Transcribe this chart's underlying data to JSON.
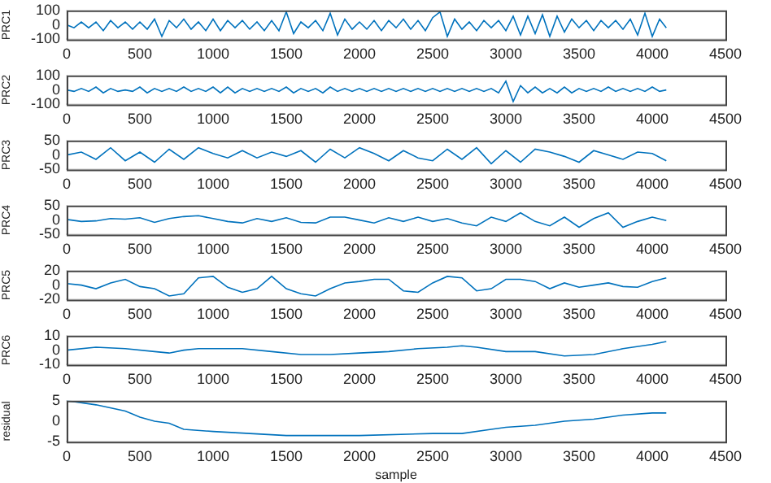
{
  "chart_data": [
    {
      "type": "line",
      "ylabel": "PRC1",
      "marker": "none",
      "xlim": [
        0,
        4500
      ],
      "xticks": [
        0,
        500,
        1000,
        1500,
        2000,
        2500,
        3000,
        3500,
        4000,
        4500
      ],
      "ylim": [
        -100,
        100
      ],
      "yticks": [
        -100,
        0,
        100
      ],
      "x": [
        0,
        50,
        100,
        150,
        200,
        250,
        300,
        350,
        400,
        450,
        500,
        550,
        600,
        650,
        700,
        750,
        800,
        850,
        900,
        950,
        1000,
        1050,
        1100,
        1150,
        1200,
        1250,
        1300,
        1350,
        1400,
        1450,
        1500,
        1550,
        1600,
        1650,
        1700,
        1750,
        1800,
        1850,
        1900,
        1950,
        2000,
        2050,
        2100,
        2150,
        2200,
        2250,
        2300,
        2350,
        2400,
        2450,
        2500,
        2550,
        2600,
        2650,
        2700,
        2750,
        2800,
        2850,
        2900,
        2950,
        3000,
        3050,
        3100,
        3150,
        3200,
        3250,
        3300,
        3350,
        3400,
        3450,
        3500,
        3550,
        3600,
        3650,
        3700,
        3750,
        3800,
        3850,
        3900,
        3950,
        4000,
        4050,
        4096
      ],
      "series": [
        {
          "color": "#0072bd",
          "values": [
            0,
            -20,
            20,
            -20,
            20,
            -40,
            30,
            -20,
            20,
            -30,
            20,
            -30,
            40,
            -80,
            30,
            -20,
            40,
            -30,
            20,
            -40,
            40,
            -40,
            30,
            -20,
            30,
            -30,
            20,
            -40,
            30,
            -40,
            90,
            -60,
            20,
            -20,
            30,
            -40,
            80,
            -70,
            40,
            -30,
            20,
            -30,
            30,
            -40,
            30,
            -20,
            40,
            -30,
            30,
            -40,
            50,
            90,
            -80,
            40,
            -30,
            20,
            -40,
            30,
            -20,
            30,
            -40,
            60,
            -70,
            60,
            -60,
            70,
            -80,
            60,
            -50,
            40,
            -20,
            30,
            -40,
            30,
            -20,
            30,
            -30,
            40,
            -70,
            80,
            -80,
            40,
            -20
          ]
        }
      ]
    },
    {
      "type": "line",
      "ylabel": "PRC2",
      "marker": "none",
      "xlim": [
        0,
        4500
      ],
      "xticks": [
        0,
        500,
        1000,
        1500,
        2000,
        2500,
        3000,
        3500,
        4000,
        4500
      ],
      "ylim": [
        -100,
        100
      ],
      "yticks": [
        -100,
        0,
        100
      ],
      "x": [
        0,
        50,
        100,
        150,
        200,
        250,
        300,
        350,
        400,
        450,
        500,
        550,
        600,
        650,
        700,
        750,
        800,
        850,
        900,
        950,
        1000,
        1050,
        1100,
        1150,
        1200,
        1250,
        1300,
        1350,
        1400,
        1450,
        1500,
        1550,
        1600,
        1650,
        1700,
        1750,
        1800,
        1850,
        1900,
        1950,
        2000,
        2050,
        2100,
        2150,
        2200,
        2250,
        2300,
        2350,
        2400,
        2450,
        2500,
        2550,
        2600,
        2650,
        2700,
        2750,
        2800,
        2850,
        2900,
        2950,
        3000,
        3050,
        3100,
        3150,
        3200,
        3250,
        3300,
        3350,
        3400,
        3450,
        3500,
        3550,
        3600,
        3650,
        3700,
        3750,
        3800,
        3850,
        3900,
        3950,
        4000,
        4050,
        4096
      ],
      "series": [
        {
          "color": "#0072bd",
          "values": [
            0,
            -10,
            10,
            -10,
            20,
            -20,
            10,
            -10,
            0,
            -10,
            20,
            -20,
            10,
            -10,
            10,
            -10,
            20,
            -10,
            10,
            -10,
            20,
            -20,
            20,
            -20,
            10,
            -10,
            10,
            -10,
            10,
            -10,
            20,
            -20,
            10,
            -10,
            10,
            -20,
            20,
            -10,
            10,
            -10,
            10,
            -10,
            10,
            -10,
            10,
            -10,
            10,
            -10,
            10,
            -10,
            10,
            -10,
            10,
            -10,
            10,
            -10,
            10,
            -10,
            10,
            -20,
            60,
            -80,
            30,
            -20,
            20,
            -20,
            10,
            -20,
            20,
            -20,
            10,
            -10,
            10,
            -10,
            20,
            -10,
            10,
            -10,
            10,
            -10,
            20,
            -10,
            0
          ]
        }
      ]
    },
    {
      "type": "line",
      "ylabel": "PRC3",
      "marker": "none",
      "xlim": [
        0,
        4500
      ],
      "xticks": [
        0,
        500,
        1000,
        1500,
        2000,
        2500,
        3000,
        3500,
        4000,
        4500
      ],
      "ylim": [
        -50,
        50
      ],
      "yticks": [
        -50,
        0,
        50
      ],
      "x": [
        0,
        100,
        200,
        300,
        400,
        500,
        600,
        700,
        800,
        900,
        1000,
        1100,
        1200,
        1300,
        1400,
        1500,
        1600,
        1700,
        1800,
        1900,
        2000,
        2100,
        2200,
        2300,
        2400,
        2500,
        2600,
        2700,
        2800,
        2900,
        3000,
        3100,
        3200,
        3300,
        3400,
        3500,
        3600,
        3700,
        3800,
        3900,
        4000,
        4096
      ],
      "series": [
        {
          "color": "#0072bd",
          "values": [
            0,
            10,
            -15,
            25,
            -20,
            10,
            -25,
            20,
            -15,
            25,
            5,
            -10,
            15,
            -10,
            10,
            -5,
            15,
            -25,
            20,
            -10,
            25,
            5,
            -20,
            15,
            -10,
            -20,
            20,
            -15,
            25,
            -30,
            15,
            -25,
            20,
            10,
            -5,
            -25,
            15,
            0,
            -15,
            10,
            5,
            -20
          ]
        }
      ]
    },
    {
      "type": "line",
      "ylabel": "PRC4",
      "marker": "none",
      "xlim": [
        0,
        4500
      ],
      "xticks": [
        0,
        500,
        1000,
        1500,
        2000,
        2500,
        3000,
        3500,
        4000,
        4500
      ],
      "ylim": [
        -50,
        50
      ],
      "yticks": [
        -50,
        0,
        50
      ],
      "x": [
        0,
        100,
        200,
        300,
        400,
        500,
        600,
        700,
        800,
        900,
        1000,
        1100,
        1200,
        1300,
        1400,
        1500,
        1600,
        1700,
        1800,
        1900,
        2000,
        2100,
        2200,
        2300,
        2400,
        2500,
        2600,
        2700,
        2800,
        2900,
        3000,
        3100,
        3200,
        3300,
        3400,
        3500,
        3600,
        3700,
        3800,
        3900,
        4000,
        4096
      ],
      "series": [
        {
          "color": "#0072bd",
          "values": [
            2,
            -5,
            -3,
            5,
            3,
            8,
            -8,
            5,
            12,
            15,
            5,
            -5,
            -10,
            5,
            -5,
            8,
            -8,
            -10,
            10,
            10,
            0,
            -10,
            8,
            -5,
            10,
            -5,
            5,
            -10,
            -20,
            10,
            -5,
            25,
            -5,
            -20,
            10,
            -25,
            5,
            25,
            -25,
            -5,
            10,
            -2
          ]
        }
      ]
    },
    {
      "type": "line",
      "ylabel": "PRC5",
      "marker": "none",
      "xlim": [
        0,
        4500
      ],
      "xticks": [
        0,
        500,
        1000,
        1500,
        2000,
        2500,
        3000,
        3500,
        4000,
        4500
      ],
      "ylim": [
        -20,
        20
      ],
      "yticks": [
        -20,
        0,
        20
      ],
      "x": [
        0,
        100,
        200,
        300,
        400,
        500,
        600,
        700,
        800,
        900,
        1000,
        1100,
        1200,
        1300,
        1400,
        1500,
        1600,
        1700,
        1800,
        1900,
        2000,
        2100,
        2200,
        2300,
        2400,
        2500,
        2600,
        2700,
        2800,
        2900,
        3000,
        3100,
        3200,
        3300,
        3400,
        3500,
        3600,
        3700,
        3800,
        3900,
        4000,
        4096
      ],
      "series": [
        {
          "color": "#0072bd",
          "values": [
            2,
            0,
            -5,
            3,
            8,
            -2,
            -5,
            -15,
            -12,
            10,
            12,
            -3,
            -10,
            -5,
            12,
            -5,
            -12,
            -15,
            -5,
            3,
            5,
            8,
            8,
            -8,
            -10,
            3,
            12,
            10,
            -8,
            -5,
            8,
            8,
            5,
            -5,
            3,
            -3,
            0,
            3,
            -2,
            -3,
            5,
            10
          ]
        }
      ]
    },
    {
      "type": "line",
      "ylabel": "PRC6",
      "marker": "none",
      "xlim": [
        0,
        4500
      ],
      "xticks": [
        0,
        500,
        1000,
        1500,
        2000,
        2500,
        3000,
        3500,
        4000,
        4500
      ],
      "ylim": [
        -10,
        10
      ],
      "yticks": [
        -10,
        0,
        10
      ],
      "x": [
        0,
        200,
        400,
        600,
        700,
        800,
        900,
        1000,
        1200,
        1400,
        1600,
        1800,
        2000,
        2200,
        2400,
        2600,
        2700,
        2800,
        3000,
        3200,
        3400,
        3600,
        3800,
        4000,
        4096
      ],
      "series": [
        {
          "color": "#0072bd",
          "values": [
            0,
            2,
            1,
            -1,
            -2,
            0,
            1,
            1,
            1,
            -1,
            -3,
            -3,
            -2,
            -1,
            1,
            2,
            3,
            2,
            -1,
            -1,
            -4,
            -3,
            1,
            4,
            6
          ]
        }
      ]
    },
    {
      "type": "line",
      "ylabel": "residual",
      "xlabel": "sample",
      "marker": "none",
      "xlim": [
        0,
        4500
      ],
      "xticks": [
        0,
        500,
        1000,
        1500,
        2000,
        2500,
        3000,
        3500,
        4000,
        4500
      ],
      "ylim": [
        -5,
        5
      ],
      "yticks": [
        -5,
        0,
        5
      ],
      "x": [
        0,
        200,
        400,
        500,
        600,
        700,
        800,
        1000,
        1500,
        2000,
        2500,
        2700,
        2900,
        3000,
        3200,
        3400,
        3600,
        3800,
        4000,
        4096
      ],
      "series": [
        {
          "color": "#0072bd",
          "values": [
            5,
            4,
            2.5,
            1,
            0,
            -0.5,
            -2,
            -2.5,
            -3.5,
            -3.5,
            -3,
            -3,
            -2,
            -1.5,
            -1,
            0,
            0.5,
            1.5,
            2,
            2
          ]
        }
      ]
    }
  ]
}
